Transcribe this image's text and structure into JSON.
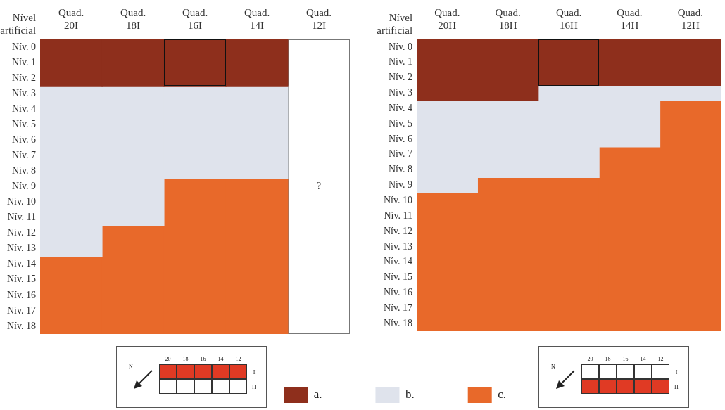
{
  "chart_data": [
    {
      "type": "bar",
      "stacked": true,
      "ylabel": "Nível artificial",
      "categories": [
        "Quad. 20I",
        "Quad. 18I",
        "Quad. 16I",
        "Quad. 14I",
        "Quad. 12I"
      ],
      "ylim": [
        19,
        0
      ],
      "yticks": [
        {
          "value": 0.5,
          "label": "Nív. 0"
        },
        {
          "value": 1.5,
          "label": "Nív. 1"
        },
        {
          "value": 2.5,
          "label": "Nív. 2"
        },
        {
          "value": 3.5,
          "label": "Nív. 3"
        },
        {
          "value": 4.5,
          "label": "Nív. 4"
        },
        {
          "value": 5.5,
          "label": "Nív. 5"
        },
        {
          "value": 6.5,
          "label": "Nív. 6"
        },
        {
          "value": 7.5,
          "label": "Nív. 7"
        },
        {
          "value": 8.5,
          "label": "Nív. 8"
        },
        {
          "value": 9.5,
          "label": "Nív. 9"
        },
        {
          "value": 10.5,
          "label": "Nív. 10"
        },
        {
          "value": 11.5,
          "label": "Nív. 11"
        },
        {
          "value": 12.5,
          "label": "Nív. 12"
        },
        {
          "value": 13.5,
          "label": "Nív. 13"
        },
        {
          "value": 14.5,
          "label": "Nív. 14"
        },
        {
          "value": 15.5,
          "label": "Nív. 15"
        },
        {
          "value": 16.5,
          "label": "Nív. 16"
        },
        {
          "value": 17.5,
          "label": "Nív. 17"
        },
        {
          "value": 18.5,
          "label": "Nív. 18"
        }
      ],
      "series": [
        {
          "name": "a.",
          "color": "#8e2f1c",
          "values": [
            3,
            3,
            3,
            3,
            null
          ]
        },
        {
          "name": "b.",
          "color": "#dfe3ec",
          "values": [
            11,
            9,
            6,
            6,
            null
          ]
        },
        {
          "name": "c.",
          "color": "#e8692a",
          "values": [
            5,
            7,
            10,
            10,
            null
          ]
        },
        {
          "color": "#ffffff",
          "values": [
            null,
            null,
            null,
            null,
            19
          ],
          "value_labels": [
            null,
            null,
            null,
            null,
            "?"
          ]
        }
      ],
      "legend": "bottom",
      "grid": false,
      "annotations": [
        "N",
        "20",
        "18",
        "16",
        "14",
        "12",
        "I",
        "H"
      ]
    },
    {
      "type": "bar",
      "stacked": true,
      "ylabel": "Nível artificial",
      "categories": [
        "Quad. 20H",
        "Quad. 18H",
        "Quad. 16H",
        "Quad. 14H",
        "Quad. 12H"
      ],
      "ylim": [
        19,
        0
      ],
      "yticks": [
        {
          "value": 0.5,
          "label": "Nív. 0"
        },
        {
          "value": 1.5,
          "label": "Nív. 1"
        },
        {
          "value": 2.5,
          "label": "Nív. 2"
        },
        {
          "value": 3.5,
          "label": "Nív. 3"
        },
        {
          "value": 4.5,
          "label": "Nív. 4"
        },
        {
          "value": 5.5,
          "label": "Nív. 5"
        },
        {
          "value": 6.5,
          "label": "Nív. 6"
        },
        {
          "value": 7.5,
          "label": "Nív. 7"
        },
        {
          "value": 8.5,
          "label": "Nív. 8"
        },
        {
          "value": 9.5,
          "label": "Nív. 9"
        },
        {
          "value": 10.5,
          "label": "Nív. 10"
        },
        {
          "value": 11.5,
          "label": "Nív. 11"
        },
        {
          "value": 12.5,
          "label": "Nív. 12"
        },
        {
          "value": 13.5,
          "label": "Nív. 13"
        },
        {
          "value": 14.5,
          "label": "Nív. 14"
        },
        {
          "value": 15.5,
          "label": "Nív. 15"
        },
        {
          "value": 16.5,
          "label": "Nív. 16"
        },
        {
          "value": 17.5,
          "label": "Nív. 17"
        },
        {
          "value": 18.5,
          "label": "Nív. 18"
        }
      ],
      "series": [
        {
          "color": "#8e2f1c",
          "values": [
            4,
            4,
            3,
            3,
            3
          ]
        },
        {
          "color": "#dfe3ec",
          "values": [
            6,
            5,
            6,
            4,
            1
          ]
        },
        {
          "color": "#e8692a",
          "values": [
            9,
            10,
            10,
            12,
            15
          ]
        }
      ],
      "grid": false,
      "annotations": [
        "N",
        "20",
        "18",
        "16",
        "14",
        "12",
        "I",
        "H"
      ]
    }
  ]
}
